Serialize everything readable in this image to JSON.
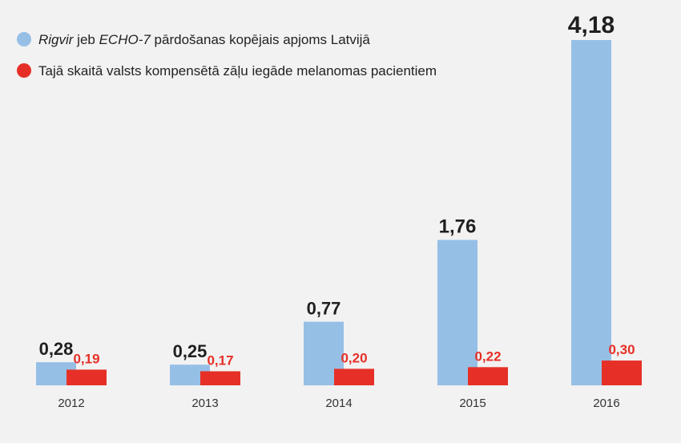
{
  "chart_data": {
    "type": "bar",
    "categories": [
      "2012",
      "2013",
      "2014",
      "2015",
      "2016"
    ],
    "series": [
      {
        "name": "Rigvir jeb ECHO-7 pārdošanas kopējais apjoms Latvijā",
        "values": [
          0.28,
          0.25,
          0.77,
          1.76,
          4.18
        ],
        "labels": [
          "0,28",
          "0,25",
          "0,77",
          "1,76",
          "4,18"
        ],
        "color": "#96bfe6"
      },
      {
        "name": "Tajā skaitā valsts kompensētā zāļu iegāde melanomas pacientiem",
        "values": [
          0.19,
          0.17,
          0.2,
          0.22,
          0.3
        ],
        "labels": [
          "0,19",
          "0,17",
          "0,20",
          "0,22",
          "0,30"
        ],
        "color": "#e63027"
      }
    ],
    "legend": {
      "placement": "top-left",
      "items": [
        {
          "parts": [
            {
              "text": "Rigvir",
              "italic": true
            },
            {
              "text": " jeb ",
              "italic": false
            },
            {
              "text": "ECHO-7",
              "italic": true
            },
            {
              "text": " pārdošanas kopējais apjoms Latvijā",
              "italic": false
            }
          ]
        },
        {
          "parts": [
            {
              "text": "Tajā skaitā valsts kompensētā zāļu iegāde melanomas pacientiem",
              "italic": false
            }
          ]
        }
      ]
    },
    "title": "",
    "xlabel": "",
    "ylabel": "",
    "ylim": [
      0,
      4.18
    ],
    "grid": false
  }
}
